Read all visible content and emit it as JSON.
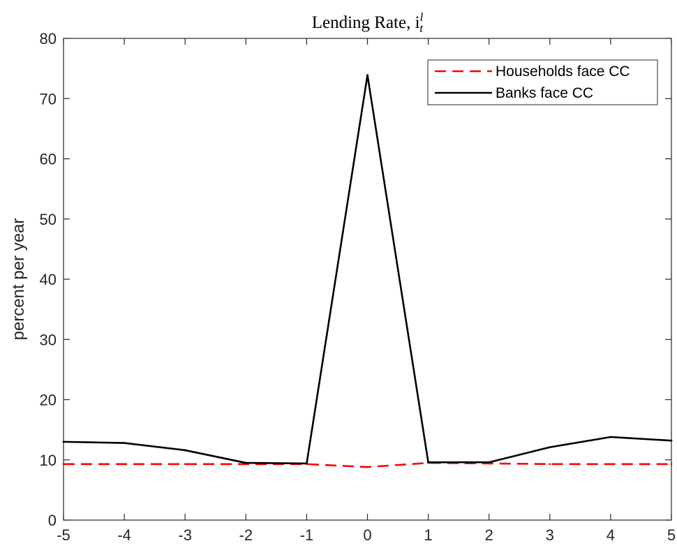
{
  "chart_data": {
    "type": "line",
    "title": "Lending Rate, i",
    "title_superscript": "l",
    "title_subscript": "t",
    "xlabel": "",
    "ylabel": "percent per year",
    "x": [
      -5,
      -4,
      -3,
      -2,
      -1,
      0,
      1,
      2,
      3,
      4,
      5
    ],
    "xlim": [
      -5,
      5
    ],
    "ylim": [
      0,
      80
    ],
    "xticks": [
      "-5",
      "-4",
      "-3",
      "-2",
      "-1",
      "0",
      "1",
      "2",
      "3",
      "4",
      "5"
    ],
    "yticks": [
      "0",
      "10",
      "20",
      "30",
      "40",
      "50",
      "60",
      "70",
      "80"
    ],
    "grid": false,
    "legend_position": "top-right",
    "series": [
      {
        "name": "Households face CC",
        "color": "#ff0000",
        "style": "dashed",
        "values": [
          9.3,
          9.3,
          9.3,
          9.3,
          9.3,
          8.8,
          9.5,
          9.4,
          9.3,
          9.3,
          9.3
        ]
      },
      {
        "name": "Banks face CC",
        "color": "#000000",
        "style": "solid",
        "values": [
          13.0,
          12.8,
          11.6,
          9.5,
          9.4,
          73.9,
          9.6,
          9.6,
          12.1,
          13.8,
          13.2
        ]
      }
    ]
  }
}
